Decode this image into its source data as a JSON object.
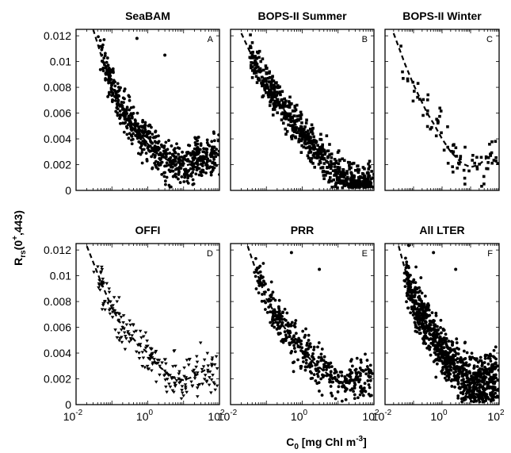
{
  "figure": {
    "ylabel": {
      "base": "R",
      "sub": "rs",
      "args": "(0",
      "sup": "+",
      "rest": ",443)"
    },
    "xlabel": {
      "base": "C",
      "sub": "0",
      "rest": " [mg Chl m",
      "sup": "-3",
      "end": "]"
    }
  },
  "chart_data": [
    {
      "type": "scatter",
      "id": "A",
      "title": "SeaBAM",
      "letter": "A",
      "marker": "dot",
      "xscale": "log",
      "xlim": [
        0.01,
        100
      ],
      "ylim": [
        0,
        0.0125
      ],
      "yticks": [
        "0",
        "0.002",
        "0.004",
        "0.006",
        "0.008",
        "0.01",
        "0.012"
      ],
      "xticks": [],
      "model": [
        [
          0.03,
          0.0125
        ],
        [
          0.05,
          0.0105
        ],
        [
          0.1,
          0.0082
        ],
        [
          0.2,
          0.0063
        ],
        [
          0.5,
          0.0047
        ],
        [
          1,
          0.0036
        ],
        [
          2,
          0.0028
        ],
        [
          5,
          0.0021
        ],
        [
          10,
          0.0019
        ],
        [
          20,
          0.0021
        ],
        [
          40,
          0.0026
        ]
      ],
      "points": 650,
      "yscatter": 0.0008
    },
    {
      "type": "scatter",
      "id": "B",
      "title": "BOPS-II Summer",
      "letter": "B",
      "marker": "square",
      "xscale": "log",
      "xlim": [
        0.01,
        100
      ],
      "ylim": [
        0,
        0.0125
      ],
      "yticks": [],
      "xticks": [],
      "model": [
        [
          0.02,
          0.0122
        ],
        [
          0.05,
          0.0098
        ],
        [
          0.1,
          0.0083
        ],
        [
          0.3,
          0.0063
        ],
        [
          0.5,
          0.0055
        ],
        [
          1,
          0.0045
        ],
        [
          2,
          0.0035
        ],
        [
          5,
          0.0022
        ],
        [
          10,
          0.0014
        ],
        [
          20,
          0.0009
        ],
        [
          50,
          0.0006
        ]
      ],
      "points": 700,
      "yscatter": 0.0007
    },
    {
      "type": "scatter",
      "id": "C",
      "title": "BOPS-II Winter",
      "letter": "C",
      "marker": "square",
      "xscale": "log",
      "xlim": [
        0.01,
        100
      ],
      "ylim": [
        0,
        0.0125
      ],
      "yticks": [],
      "xticks": [],
      "model": [
        [
          0.02,
          0.0122
        ],
        [
          0.05,
          0.0098
        ],
        [
          0.1,
          0.0082
        ],
        [
          0.3,
          0.006
        ],
        [
          0.5,
          0.0052
        ],
        [
          1,
          0.004
        ],
        [
          2,
          0.003
        ],
        [
          5,
          0.0021
        ],
        [
          10,
          0.0018
        ],
        [
          20,
          0.002
        ],
        [
          40,
          0.0026
        ]
      ],
      "points": 80,
      "yscatter": 0.0009
    },
    {
      "type": "scatter",
      "id": "D",
      "title": "OFFI",
      "letter": "D",
      "marker": "triangle",
      "xscale": "log",
      "xlim": [
        0.01,
        100
      ],
      "ylim": [
        0,
        0.0125
      ],
      "yticks": [
        "0",
        "0.002",
        "0.004",
        "0.006",
        "0.008",
        "0.01",
        "0.012"
      ],
      "xticks": [
        "10-2",
        "100",
        "102"
      ],
      "model": [
        [
          0.02,
          0.0123
        ],
        [
          0.05,
          0.0095
        ],
        [
          0.1,
          0.0075
        ],
        [
          0.2,
          0.006
        ],
        [
          0.5,
          0.0048
        ],
        [
          1,
          0.004
        ],
        [
          2,
          0.003
        ],
        [
          5,
          0.0021
        ],
        [
          10,
          0.0019
        ],
        [
          20,
          0.0022
        ],
        [
          40,
          0.0027
        ]
      ],
      "points": 220,
      "yscatter": 0.0008
    },
    {
      "type": "scatter",
      "id": "E",
      "title": "PRR",
      "letter": "E",
      "marker": "dot",
      "xscale": "log",
      "xlim": [
        0.01,
        100
      ],
      "ylim": [
        0,
        0.0125
      ],
      "yticks": [],
      "xticks": [
        "10-2",
        "100",
        "102"
      ],
      "model": [
        [
          0.03,
          0.0123
        ],
        [
          0.05,
          0.0105
        ],
        [
          0.1,
          0.0082
        ],
        [
          0.2,
          0.0068
        ],
        [
          0.5,
          0.0052
        ],
        [
          1,
          0.0042
        ],
        [
          2,
          0.0033
        ],
        [
          5,
          0.0024
        ],
        [
          10,
          0.0018
        ],
        [
          20,
          0.0017
        ],
        [
          40,
          0.0021
        ]
      ],
      "points": 420,
      "yscatter": 0.0008
    },
    {
      "type": "scatter",
      "id": "F",
      "title": "All LTER",
      "letter": "F",
      "marker": "dot",
      "xscale": "log",
      "xlim": [
        0.01,
        100
      ],
      "ylim": [
        0,
        0.0125
      ],
      "yticks": [],
      "xticks": [
        "10-2",
        "100",
        "102"
      ],
      "model": [
        [
          0.03,
          0.0123
        ],
        [
          0.05,
          0.0105
        ],
        [
          0.1,
          0.0082
        ],
        [
          0.2,
          0.0068
        ],
        [
          0.5,
          0.0052
        ],
        [
          1,
          0.0042
        ],
        [
          2,
          0.0033
        ],
        [
          5,
          0.0024
        ],
        [
          10,
          0.0018
        ],
        [
          20,
          0.0017
        ],
        [
          40,
          0.0021
        ]
      ],
      "points": 950,
      "yscatter": 0.001
    }
  ]
}
